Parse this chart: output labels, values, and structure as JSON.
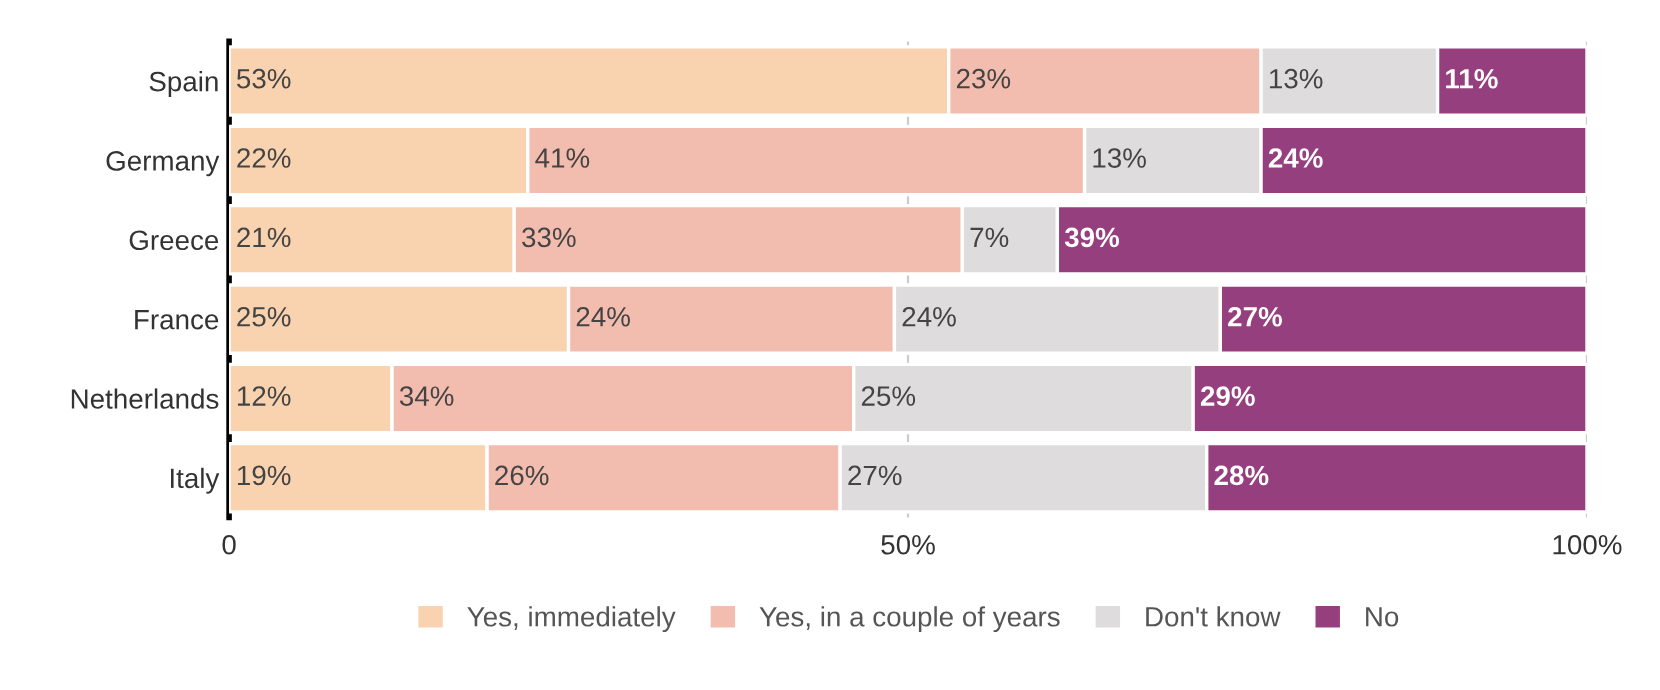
{
  "chart_data": {
    "type": "bar",
    "orientation": "horizontal",
    "stacked": true,
    "categories": [
      "Spain",
      "Germany",
      "Greece",
      "France",
      "Netherlands",
      "Italy"
    ],
    "series": [
      {
        "name": "Yes, immediately",
        "color": "#f9d3b0",
        "values": [
          53,
          22,
          21,
          25,
          12,
          19
        ],
        "value_labels": [
          "53%",
          "22%",
          "21%",
          "25%",
          "12%",
          "19%"
        ]
      },
      {
        "name": "Yes, in a couple of years",
        "color": "#f2bcae",
        "values": [
          23,
          41,
          33,
          24,
          34,
          26
        ],
        "value_labels": [
          "23%",
          "41%",
          "33%",
          "24%",
          "34%",
          "26%"
        ]
      },
      {
        "name": "Don't know",
        "color": "#dedcdc",
        "values": [
          13,
          13,
          7,
          24,
          25,
          27
        ],
        "value_labels": [
          "13%",
          "13%",
          "7%",
          "24%",
          "25%",
          "27%"
        ]
      },
      {
        "name": "No",
        "color": "#953f7e",
        "values": [
          11,
          24,
          39,
          27,
          29,
          28
        ],
        "value_labels": [
          "11%",
          "24%",
          "39%",
          "27%",
          "29%",
          "28%"
        ]
      }
    ],
    "xlim": [
      0,
      100
    ],
    "xticks": [
      0,
      {
        "value": 50,
        "label": "50%"
      },
      {
        "value": 100,
        "label": "100%"
      }
    ],
    "grid": "x",
    "legend": "bottom"
  }
}
